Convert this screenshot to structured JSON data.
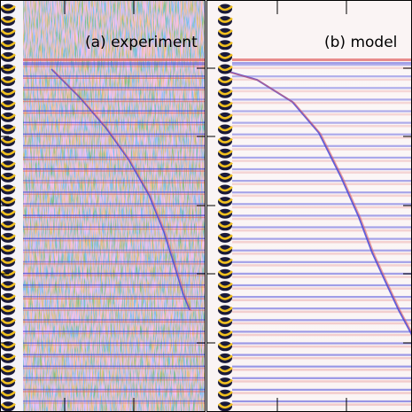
{
  "panels": [
    {
      "label": "(a) experiment"
    },
    {
      "label": "(b) model"
    }
  ],
  "colors": {
    "positive": "#e06060",
    "negative": "#4646d8",
    "background": "#f4f2f8",
    "model_background": "#faf4f4",
    "edge_dark": "#1a1a3a",
    "edge_accent": "#f0c020",
    "frame": "#000000"
  }
}
